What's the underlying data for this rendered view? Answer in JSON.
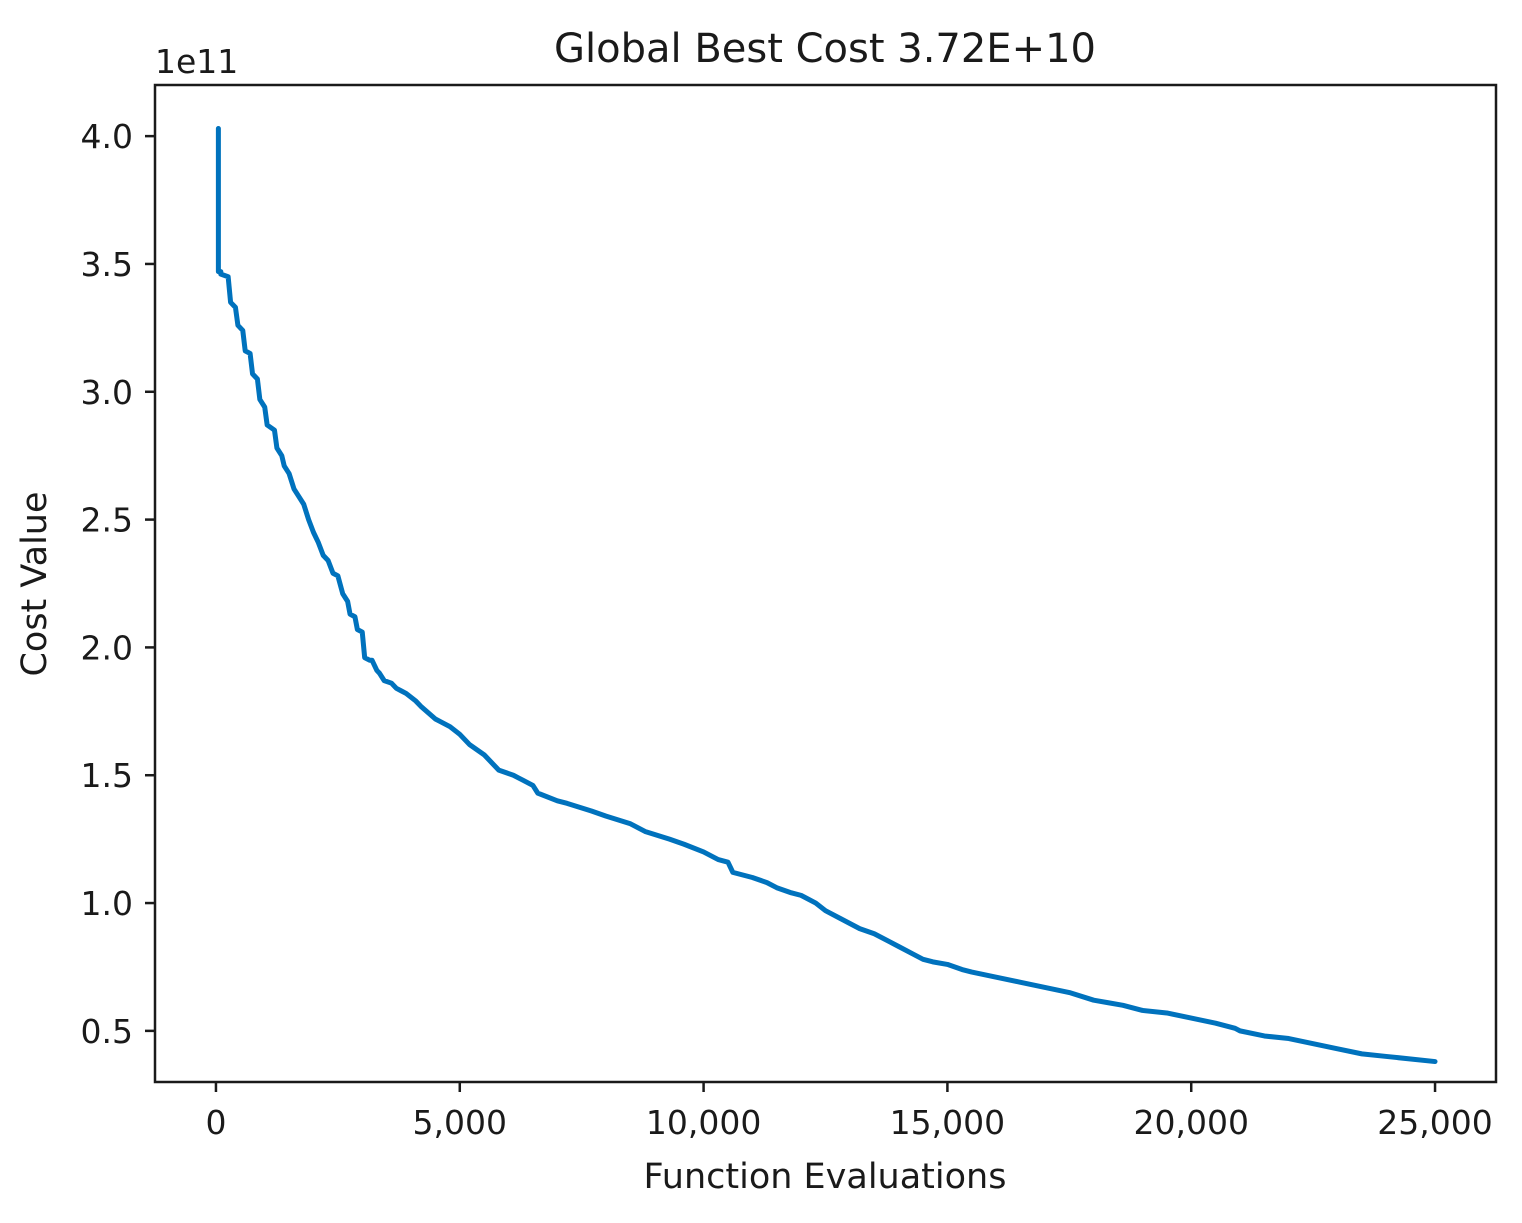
{
  "chart_data": {
    "type": "line",
    "title": "Global Best Cost 3.72E+10",
    "xlabel": "Function Evaluations",
    "ylabel": "Cost Value",
    "y_offset_label": "1e11",
    "y_scale_multiplier": 100000000000.0,
    "xlim": [
      -1250,
      26250
    ],
    "ylim": [
      0.3,
      4.2
    ],
    "x_ticks": [
      {
        "value": 0,
        "label": "0"
      },
      {
        "value": 5000,
        "label": "5,000"
      },
      {
        "value": 10000,
        "label": "10,000"
      },
      {
        "value": 15000,
        "label": "15,000"
      },
      {
        "value": 20000,
        "label": "20,000"
      },
      {
        "value": 25000,
        "label": "25,000"
      }
    ],
    "y_ticks": [
      {
        "value": 0.5,
        "label": "0.5"
      },
      {
        "value": 1.0,
        "label": "1.0"
      },
      {
        "value": 1.5,
        "label": "1.5"
      },
      {
        "value": 2.0,
        "label": "2.0"
      },
      {
        "value": 2.5,
        "label": "2.5"
      },
      {
        "value": 3.0,
        "label": "3.0"
      },
      {
        "value": 3.5,
        "label": "3.5"
      },
      {
        "value": 4.0,
        "label": "4.0"
      }
    ],
    "grid": false,
    "colors": {
      "line": "#0072bd",
      "axes": "#1a1a1a",
      "background": "#ffffff"
    },
    "series": [
      {
        "x": [
          50,
          50,
          100,
          100,
          250,
          300,
          400,
          450,
          550,
          600,
          700,
          750,
          850,
          900,
          1000,
          1050,
          1200,
          1250,
          1350,
          1400,
          1500,
          1600,
          1700,
          1800,
          1900,
          2000,
          2100,
          2200,
          2300,
          2400,
          2500,
          2600,
          2700,
          2750,
          2850,
          2900,
          3000,
          3050,
          3150,
          3200,
          3300,
          3350,
          3450,
          3600,
          3700,
          3800,
          3900,
          4100,
          4200,
          4500,
          4600,
          4800,
          5000,
          5200,
          5500,
          5800,
          6100,
          6200,
          6300,
          6500,
          6600,
          7000,
          7200,
          7700,
          8000,
          8500,
          8800,
          9300,
          9600,
          10000,
          10300,
          10500,
          10600,
          11000,
          11300,
          11500,
          11800,
          12000,
          12300,
          12500,
          12800,
          13200,
          13500,
          14000,
          14300,
          14500,
          14700,
          15000,
          15300,
          15500,
          16000,
          16500,
          17000,
          17500,
          18000,
          18300,
          18600,
          19000,
          19500,
          20000,
          20500,
          20900,
          21000,
          21500,
          22000,
          22500,
          23000,
          23500,
          24000,
          24500,
          25000
        ],
        "y": [
          4.03,
          3.47,
          3.47,
          3.46,
          3.45,
          3.35,
          3.33,
          3.26,
          3.24,
          3.16,
          3.15,
          3.07,
          3.05,
          2.97,
          2.94,
          2.87,
          2.85,
          2.78,
          2.75,
          2.71,
          2.68,
          2.62,
          2.59,
          2.56,
          2.5,
          2.45,
          2.41,
          2.36,
          2.34,
          2.29,
          2.28,
          2.21,
          2.18,
          2.13,
          2.12,
          2.07,
          2.06,
          1.96,
          1.95,
          1.95,
          1.91,
          1.9,
          1.87,
          1.86,
          1.84,
          1.83,
          1.82,
          1.79,
          1.77,
          1.72,
          1.71,
          1.69,
          1.66,
          1.62,
          1.58,
          1.52,
          1.5,
          1.49,
          1.48,
          1.46,
          1.43,
          1.4,
          1.39,
          1.36,
          1.34,
          1.31,
          1.28,
          1.25,
          1.23,
          1.2,
          1.17,
          1.16,
          1.12,
          1.1,
          1.08,
          1.06,
          1.04,
          1.03,
          1.0,
          0.97,
          0.94,
          0.9,
          0.88,
          0.83,
          0.8,
          0.78,
          0.77,
          0.76,
          0.74,
          0.73,
          0.71,
          0.69,
          0.67,
          0.65,
          0.62,
          0.61,
          0.6,
          0.58,
          0.57,
          0.55,
          0.53,
          0.51,
          0.5,
          0.48,
          0.47,
          0.45,
          0.43,
          0.41,
          0.4,
          0.39,
          0.38
        ]
      }
    ]
  }
}
